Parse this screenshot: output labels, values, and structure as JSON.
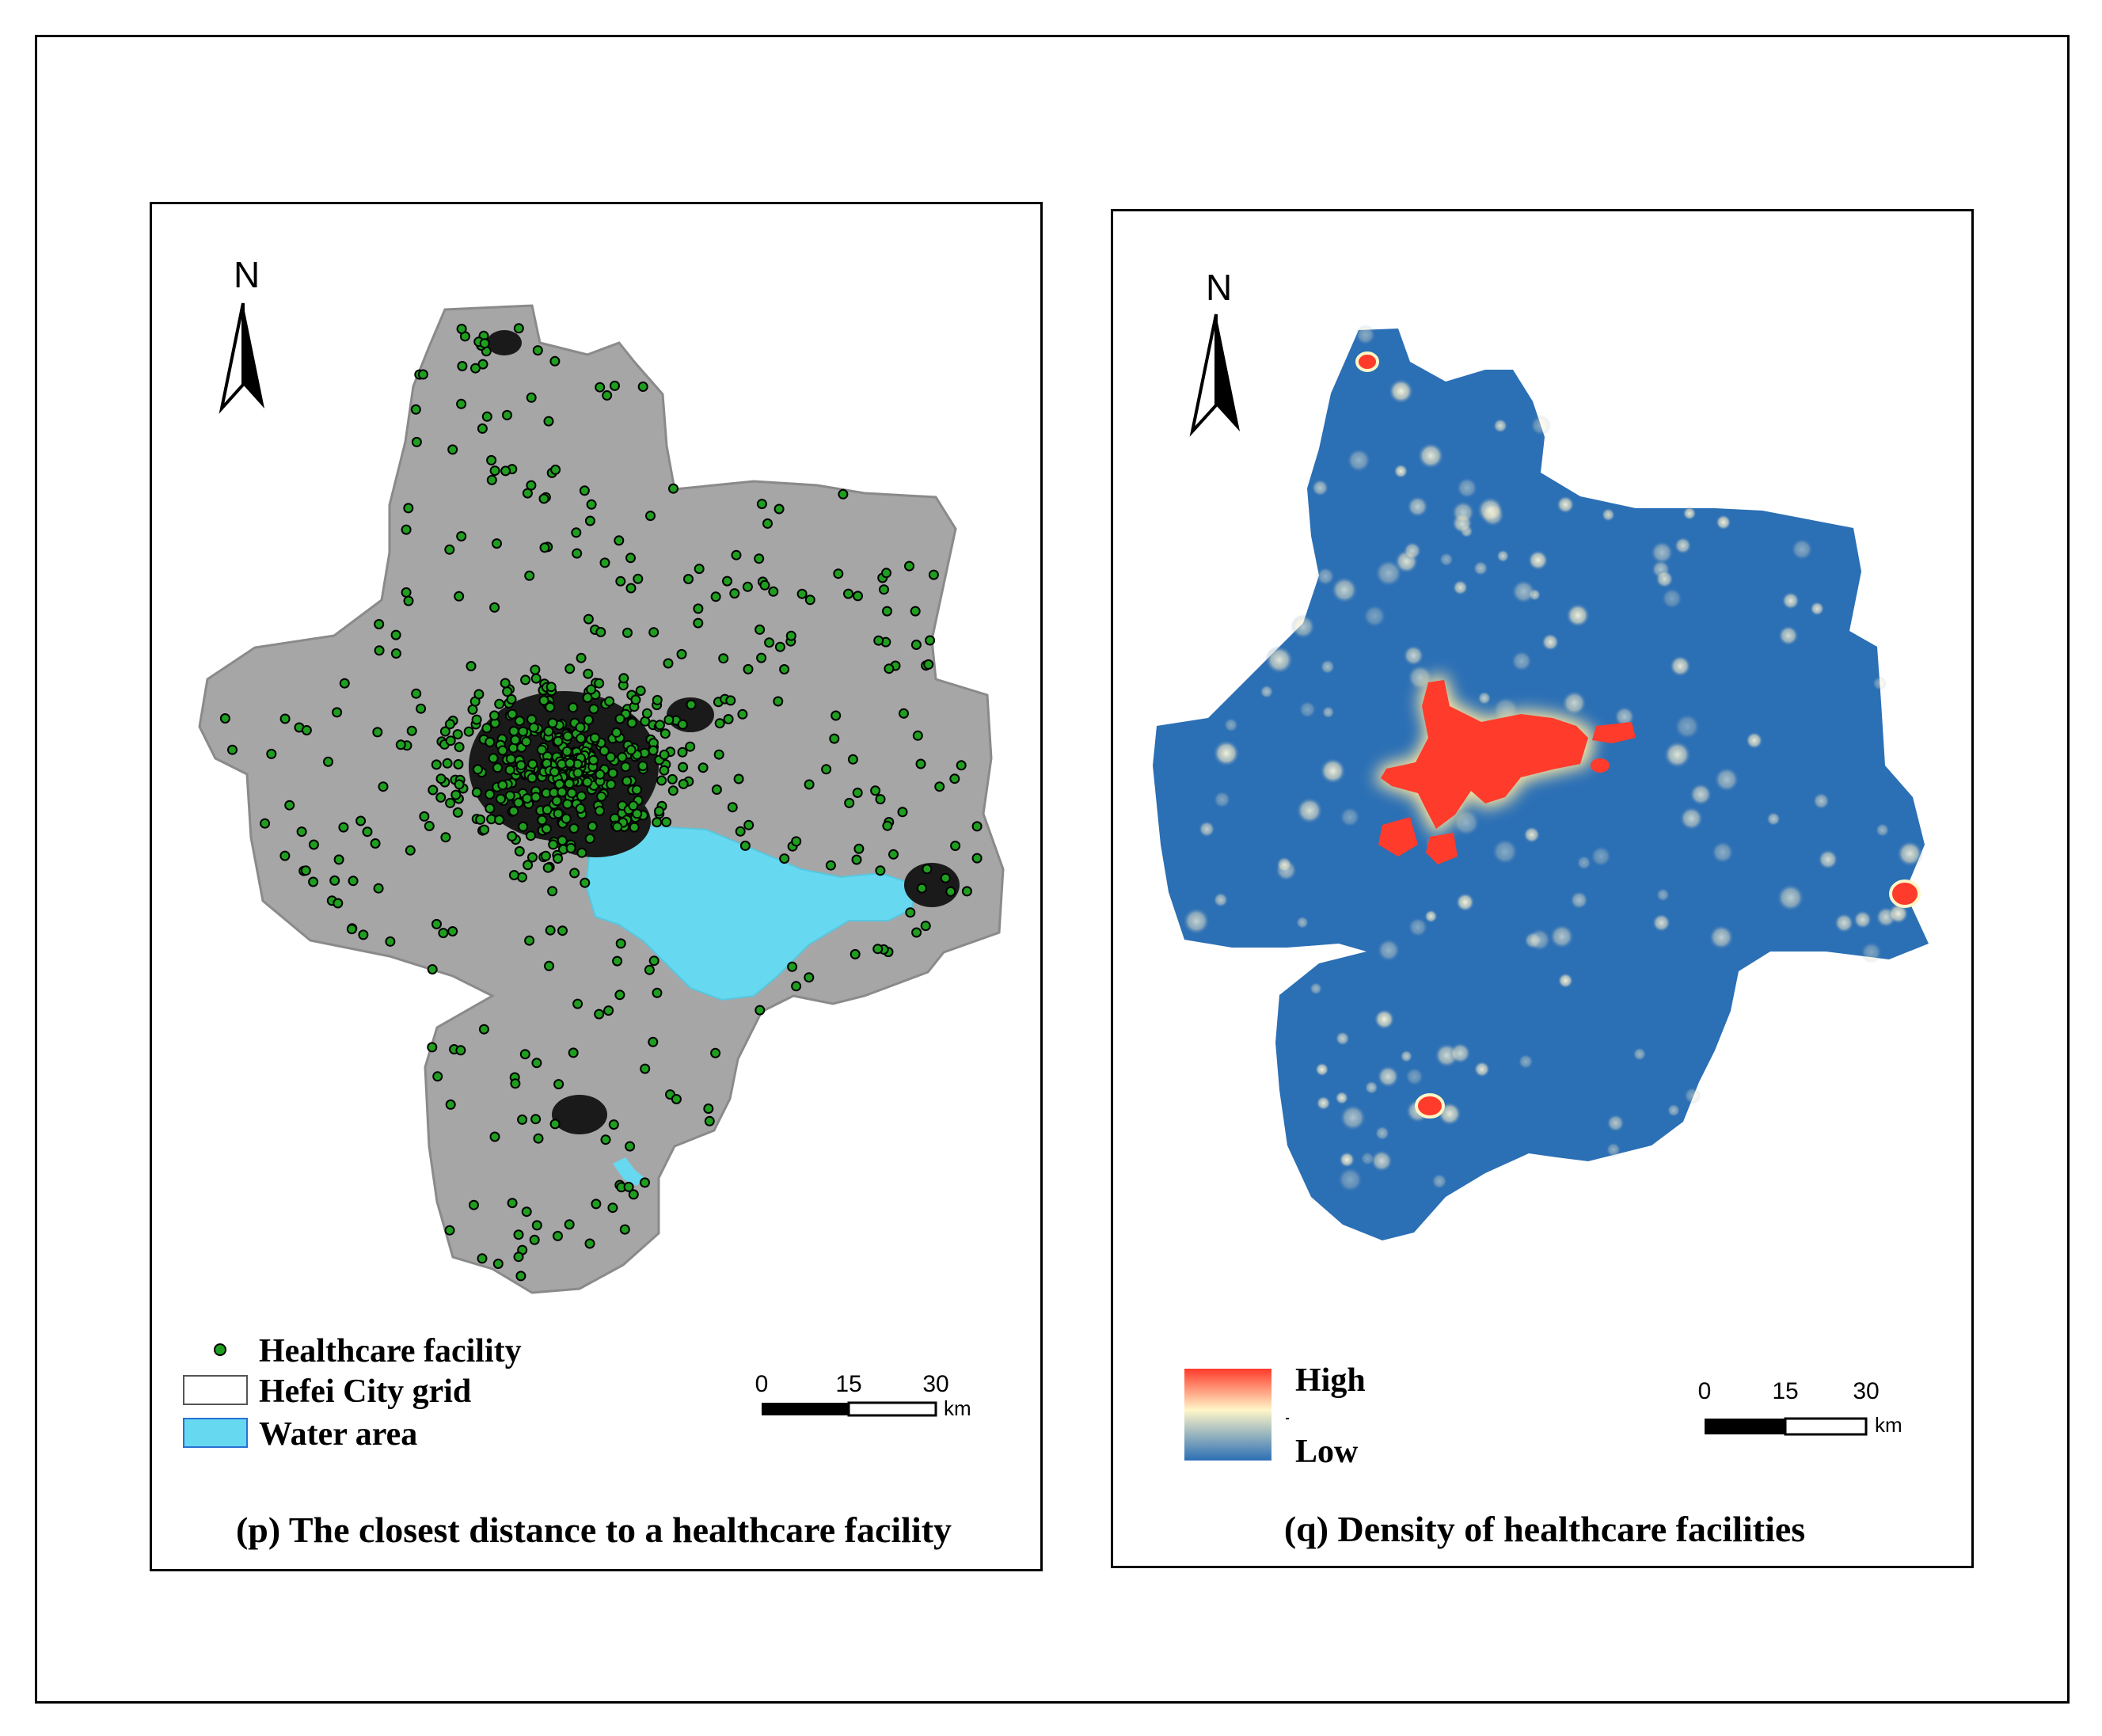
{
  "panel_p": {
    "north_label": "N",
    "legend": {
      "facility_label": "Healthcare facility",
      "grid_label": "Hefei City grid",
      "water_label": "Water area"
    },
    "scale": {
      "ticks": [
        "0",
        "15",
        "30"
      ],
      "unit": "km"
    },
    "caption": "(p) The closest distance to a healthcare facility"
  },
  "panel_q": {
    "north_label": "N",
    "legend": {
      "high_label": "High",
      "low_label": "Low"
    },
    "scale": {
      "ticks": [
        "0",
        "15",
        "30"
      ],
      "unit": "km"
    },
    "caption": "(q) Density of healthcare facilities"
  },
  "colors": {
    "grid_fill": "#a6a6a6",
    "water": "#66d9f0",
    "facility_dot": "#1f9e1f",
    "density_low": "#2b6fb5",
    "density_mid": "#fff6c8",
    "density_high": "#ff3b2b"
  }
}
